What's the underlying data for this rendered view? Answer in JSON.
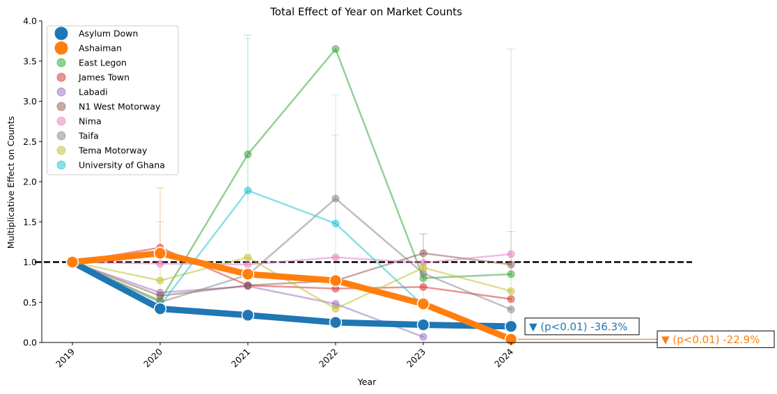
{
  "chart_data": {
    "type": "line",
    "title": "Total Effect of Year on Market Counts",
    "xlabel": "Year",
    "ylabel": "Multiplicative Effect on Counts",
    "x": [
      "2019",
      "2020",
      "2021",
      "2022",
      "2023",
      "2024"
    ],
    "ylim": [
      0,
      4.0
    ],
    "yticks": [
      "0.0",
      "0.5",
      "1.0",
      "1.5",
      "2.0",
      "2.5",
      "3.0",
      "3.5",
      "4.0"
    ],
    "reference_line": 1.0,
    "legend_position": "upper-left",
    "series": [
      {
        "name": "East Legon",
        "color": "#2ca02c",
        "emphasis": false,
        "values": [
          1.0,
          0.52,
          2.34,
          3.65,
          0.8,
          0.85
        ],
        "err_high": [
          null,
          null,
          3.82,
          null,
          null,
          3.65
        ]
      },
      {
        "name": "James Town",
        "color": "#d62728",
        "emphasis": false,
        "values": [
          1.0,
          1.18,
          0.71,
          0.67,
          0.69,
          0.54
        ],
        "err_high": [
          null,
          1.5,
          null,
          null,
          1.35,
          null
        ]
      },
      {
        "name": "Labadi",
        "color": "#9467bd",
        "emphasis": false,
        "values": [
          1.0,
          0.62,
          0.7,
          0.48,
          0.07,
          null
        ],
        "err_high": [
          null,
          null,
          null,
          null,
          null,
          null
        ]
      },
      {
        "name": "N1 West Motorway",
        "color": "#8c564b",
        "emphasis": false,
        "values": [
          1.0,
          0.58,
          0.71,
          0.77,
          1.11,
          0.97
        ],
        "err_high": [
          null,
          null,
          null,
          null,
          1.35,
          1.38
        ]
      },
      {
        "name": "Nima",
        "color": "#e377c2",
        "emphasis": false,
        "values": [
          1.0,
          0.98,
          0.97,
          1.06,
          0.99,
          1.1
        ],
        "err_high": [
          null,
          null,
          null,
          null,
          null,
          null
        ]
      },
      {
        "name": "Taifa",
        "color": "#7f7f7f",
        "emphasis": false,
        "values": [
          1.0,
          0.5,
          0.84,
          1.79,
          0.86,
          0.41
        ],
        "err_high": [
          null,
          null,
          null,
          2.58,
          null,
          null
        ]
      },
      {
        "name": "Tema Motorway",
        "color": "#bcbd22",
        "emphasis": false,
        "values": [
          1.0,
          0.77,
          1.06,
          0.42,
          0.93,
          0.64
        ],
        "err_high": [
          null,
          1.93,
          null,
          null,
          null,
          null
        ]
      },
      {
        "name": "University of Ghana",
        "color": "#17becf",
        "emphasis": false,
        "values": [
          1.0,
          0.46,
          1.89,
          1.48,
          0.46,
          null
        ],
        "err_high": [
          null,
          null,
          3.78,
          3.08,
          null,
          4.0
        ]
      },
      {
        "name": "Asylum Down",
        "color": "#1f77b4",
        "emphasis": true,
        "values": [
          1.0,
          0.42,
          0.34,
          0.25,
          0.22,
          0.2
        ],
        "err_high": [
          null,
          null,
          null,
          null,
          null,
          null
        ]
      },
      {
        "name": "Ashaiman",
        "color": "#ff7f0e",
        "emphasis": true,
        "values": [
          1.0,
          1.11,
          0.85,
          0.77,
          0.48,
          0.04
        ],
        "err_high": [
          null,
          1.92,
          null,
          null,
          null,
          null
        ]
      }
    ],
    "legend_order": [
      "Asylum Down",
      "Ashaiman",
      "East Legon",
      "James Town",
      "Labadi",
      "N1 West Motorway",
      "Nima",
      "Taifa",
      "Tema Motorway",
      "University of Ghana"
    ],
    "annotations": [
      {
        "series": "Asylum Down",
        "text": "▼ (p<0.01) -36.3%",
        "color": "#1f77b4"
      },
      {
        "series": "Ashaiman",
        "text": "▼ (p<0.01) -22.9%",
        "color": "#ff7f0e"
      }
    ]
  }
}
